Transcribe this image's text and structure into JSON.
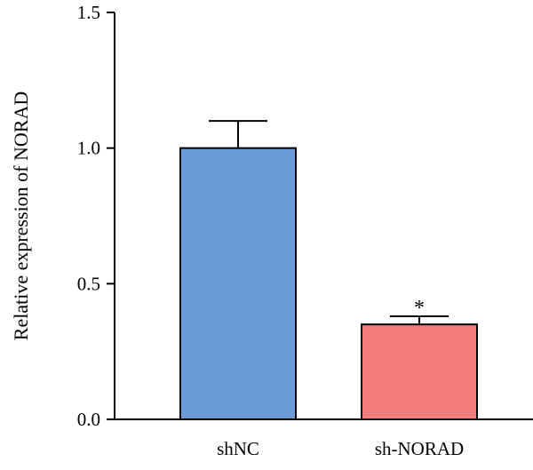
{
  "chart_data": {
    "type": "bar",
    "categories": [
      "shNC",
      "sh-NORAD"
    ],
    "values": [
      1.0,
      0.35
    ],
    "errors": [
      0.1,
      0.03
    ],
    "bar_colors": [
      "#6a9bd6",
      "#f47b7b"
    ],
    "annotations": [
      "",
      "*"
    ],
    "ylabel": "Relative expression of NORAD",
    "ylim": [
      0,
      1.5
    ],
    "yticks": [
      "0.0",
      "0.5",
      "1.0",
      "1.5"
    ],
    "grid": false
  }
}
